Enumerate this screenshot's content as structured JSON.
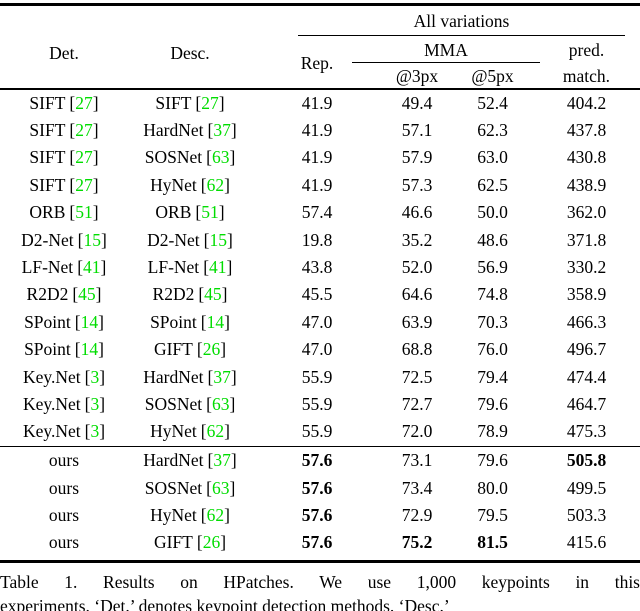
{
  "colors": {
    "citation_green": "#00dd00",
    "text": "#000000",
    "background": "#ffffff"
  },
  "punct": {
    "open_bracket": "[",
    "close_bracket": "]"
  },
  "header": {
    "det": "Det.",
    "desc": "Desc.",
    "all_variations": "All variations",
    "rep": "Rep.",
    "mma": "MMA",
    "at3px": "@3px",
    "at5px": "@5px",
    "pred_line1": "pred.",
    "pred_line2": "match."
  },
  "rows": [
    {
      "det": {
        "name": "SIFT",
        "cite": "27"
      },
      "desc": {
        "name": "SIFT",
        "cite": "27"
      },
      "values": [
        {
          "text": "41.9",
          "bold": false
        },
        {
          "text": "49.4",
          "bold": false
        },
        {
          "text": "52.4",
          "bold": false
        },
        {
          "text": "404.2",
          "bold": false
        }
      ]
    },
    {
      "det": {
        "name": "SIFT",
        "cite": "27"
      },
      "desc": {
        "name": "HardNet",
        "cite": "37"
      },
      "values": [
        {
          "text": "41.9",
          "bold": false
        },
        {
          "text": "57.1",
          "bold": false
        },
        {
          "text": "62.3",
          "bold": false
        },
        {
          "text": "437.8",
          "bold": false
        }
      ]
    },
    {
      "det": {
        "name": "SIFT",
        "cite": "27"
      },
      "desc": {
        "name": "SOSNet",
        "cite": "63"
      },
      "values": [
        {
          "text": "41.9",
          "bold": false
        },
        {
          "text": "57.9",
          "bold": false
        },
        {
          "text": "63.0",
          "bold": false
        },
        {
          "text": "430.8",
          "bold": false
        }
      ]
    },
    {
      "det": {
        "name": "SIFT",
        "cite": "27"
      },
      "desc": {
        "name": "HyNet",
        "cite": "62"
      },
      "values": [
        {
          "text": "41.9",
          "bold": false
        },
        {
          "text": "57.3",
          "bold": false
        },
        {
          "text": "62.5",
          "bold": false
        },
        {
          "text": "438.9",
          "bold": false
        }
      ]
    },
    {
      "det": {
        "name": "ORB",
        "cite": "51"
      },
      "desc": {
        "name": "ORB",
        "cite": "51"
      },
      "values": [
        {
          "text": "57.4",
          "bold": false
        },
        {
          "text": "46.6",
          "bold": false
        },
        {
          "text": "50.0",
          "bold": false
        },
        {
          "text": "362.0",
          "bold": false
        }
      ]
    },
    {
      "det": {
        "name": "D2-Net",
        "cite": "15"
      },
      "desc": {
        "name": "D2-Net",
        "cite": "15"
      },
      "values": [
        {
          "text": "19.8",
          "bold": false
        },
        {
          "text": "35.2",
          "bold": false
        },
        {
          "text": "48.6",
          "bold": false
        },
        {
          "text": "371.8",
          "bold": false
        }
      ]
    },
    {
      "det": {
        "name": "LF-Net",
        "cite": "41"
      },
      "desc": {
        "name": "LF-Net",
        "cite": "41"
      },
      "values": [
        {
          "text": "43.8",
          "bold": false
        },
        {
          "text": "52.0",
          "bold": false
        },
        {
          "text": "56.9",
          "bold": false
        },
        {
          "text": "330.2",
          "bold": false
        }
      ]
    },
    {
      "det": {
        "name": "R2D2",
        "cite": "45"
      },
      "desc": {
        "name": "R2D2",
        "cite": "45"
      },
      "values": [
        {
          "text": "45.5",
          "bold": false
        },
        {
          "text": "64.6",
          "bold": false
        },
        {
          "text": "74.8",
          "bold": false
        },
        {
          "text": "358.9",
          "bold": false
        }
      ]
    },
    {
      "det": {
        "name": "SPoint",
        "cite": "14"
      },
      "desc": {
        "name": "SPoint",
        "cite": "14"
      },
      "values": [
        {
          "text": "47.0",
          "bold": false
        },
        {
          "text": "63.9",
          "bold": false
        },
        {
          "text": "70.3",
          "bold": false
        },
        {
          "text": "466.3",
          "bold": false
        }
      ]
    },
    {
      "det": {
        "name": "SPoint",
        "cite": "14"
      },
      "desc": {
        "name": "GIFT",
        "cite": "26"
      },
      "values": [
        {
          "text": "47.0",
          "bold": false
        },
        {
          "text": "68.8",
          "bold": false
        },
        {
          "text": "76.0",
          "bold": false
        },
        {
          "text": "496.7",
          "bold": false
        }
      ]
    },
    {
      "det": {
        "name": "Key.Net",
        "cite": "3"
      },
      "desc": {
        "name": "HardNet",
        "cite": "37"
      },
      "values": [
        {
          "text": "55.9",
          "bold": false
        },
        {
          "text": "72.5",
          "bold": false
        },
        {
          "text": "79.4",
          "bold": false
        },
        {
          "text": "474.4",
          "bold": false
        }
      ]
    },
    {
      "det": {
        "name": "Key.Net",
        "cite": "3"
      },
      "desc": {
        "name": "SOSNet",
        "cite": "63"
      },
      "values": [
        {
          "text": "55.9",
          "bold": false
        },
        {
          "text": "72.7",
          "bold": false
        },
        {
          "text": "79.6",
          "bold": false
        },
        {
          "text": "464.7",
          "bold": false
        }
      ]
    },
    {
      "det": {
        "name": "Key.Net",
        "cite": "3"
      },
      "desc": {
        "name": "HyNet",
        "cite": "62"
      },
      "values": [
        {
          "text": "55.9",
          "bold": false
        },
        {
          "text": "72.0",
          "bold": false
        },
        {
          "text": "78.9",
          "bold": false
        },
        {
          "text": "475.3",
          "bold": false
        }
      ]
    },
    {
      "divider_before": true,
      "det": {
        "name": "ours",
        "cite": null
      },
      "desc": {
        "name": "HardNet",
        "cite": "37"
      },
      "values": [
        {
          "text": "57.6",
          "bold": true
        },
        {
          "text": "73.1",
          "bold": false
        },
        {
          "text": "79.6",
          "bold": false
        },
        {
          "text": "505.8",
          "bold": true
        }
      ]
    },
    {
      "det": {
        "name": "ours",
        "cite": null
      },
      "desc": {
        "name": "SOSNet",
        "cite": "63"
      },
      "values": [
        {
          "text": "57.6",
          "bold": true
        },
        {
          "text": "73.4",
          "bold": false
        },
        {
          "text": "80.0",
          "bold": false
        },
        {
          "text": "499.5",
          "bold": false
        }
      ]
    },
    {
      "det": {
        "name": "ours",
        "cite": null
      },
      "desc": {
        "name": "HyNet",
        "cite": "62"
      },
      "values": [
        {
          "text": "57.6",
          "bold": true
        },
        {
          "text": "72.9",
          "bold": false
        },
        {
          "text": "79.5",
          "bold": false
        },
        {
          "text": "503.3",
          "bold": false
        }
      ]
    },
    {
      "det": {
        "name": "ours",
        "cite": null
      },
      "desc": {
        "name": "GIFT",
        "cite": "26"
      },
      "values": [
        {
          "text": "57.6",
          "bold": true
        },
        {
          "text": "75.2",
          "bold": true
        },
        {
          "text": "81.5",
          "bold": true
        },
        {
          "text": "415.6",
          "bold": false
        }
      ]
    }
  ],
  "caption": {
    "line1": "Table 1.  Results on HPatches.  We use 1,000 keypoints in this",
    "line2": "experiments. ‘Det.’ denotes keypoint detection methods. ‘Desc.’"
  }
}
